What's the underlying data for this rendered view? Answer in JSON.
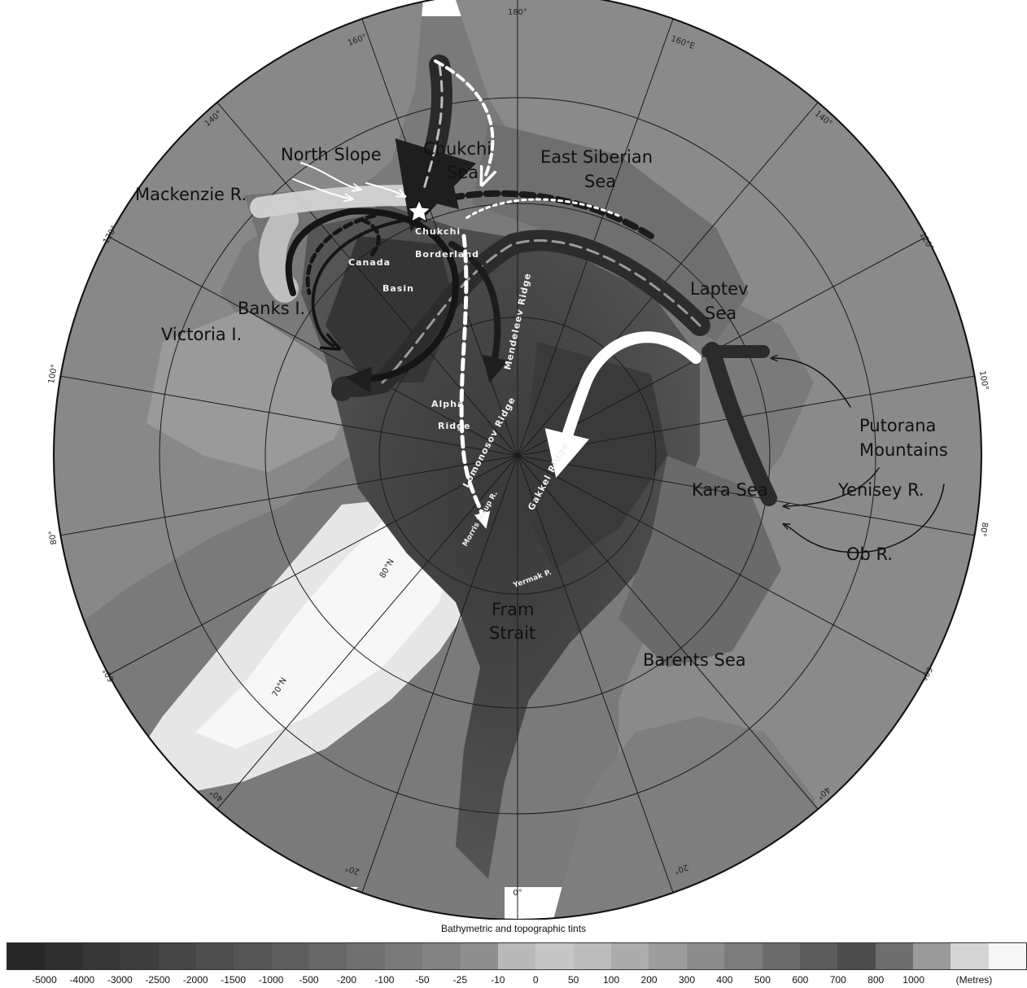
{
  "degree_labels": {
    "top": "180°",
    "top_right": "160°E",
    "top_left": "160°",
    "left_140": "140°",
    "right_140": "140°",
    "left_120": "120°",
    "right_120": "120°",
    "left_100": "100°",
    "right_100": "100°",
    "left_80": "80°",
    "right_80": "80°",
    "left_60": "60°",
    "right_60": "60°",
    "left_40": "40°",
    "right_40": "40°",
    "left_20": "20°",
    "right_20": "20°",
    "bottom": "0°",
    "lat_80": "80°N",
    "lat_70": "70°N"
  },
  "place_labels": {
    "north_slope": "North Slope",
    "chukchi_sea_1": "Chukchi",
    "chukchi_sea_2": "Sea",
    "east_siberian_1": "East Siberian",
    "east_siberian_2": "Sea",
    "mackenzie": "Mackenzie R.",
    "banks": "Banks I.",
    "victoria": "Victoria I.",
    "laptev_1": "Laptev",
    "laptev_2": "Sea",
    "putorana_1": "Putorana",
    "putorana_2": "Mountains",
    "kara": "Kara Sea",
    "yenisey": "Yenisey R.",
    "ob": "Ob R.",
    "fram_1": "Fram",
    "fram_2": "Strait",
    "barents": "Barents Sea",
    "chukchi_borderland_1": "Chukchi",
    "chukchi_borderland_2": "Borderland",
    "canada_basin_1": "Canada",
    "canada_basin_2": "Basin",
    "mendeleev": "Mendeleev Ridge",
    "alpha_1": "Alpha",
    "alpha_2": "Ridge",
    "lomonosov": "Lomonosov Ridge",
    "gakkel": "Gakkel Ridge",
    "morris_jesup": "Morris Jesup R.",
    "yermak": "Yermak P."
  },
  "legend": {
    "title": "Bathymetric and topographic tints",
    "unit": "(Metres)",
    "values": [
      "-5000",
      "-4000",
      "-3000",
      "-2500",
      "-2000",
      "-1500",
      "-1000",
      "-500",
      "-200",
      "-100",
      "-50",
      "-25",
      "-10",
      "0",
      "50",
      "100",
      "200",
      "300",
      "400",
      "500",
      "600",
      "700",
      "800",
      "1000"
    ],
    "colors": [
      "#262626",
      "#2e2e2e",
      "#363636",
      "#3d3d3d",
      "#454545",
      "#4d4d4d",
      "#555555",
      "#5e5e5e",
      "#676767",
      "#707070",
      "#7a7a7a",
      "#838383",
      "#8e8e8e",
      "#b9b9b9",
      "#c6c6c6",
      "#bcbcbc",
      "#acacac",
      "#9c9c9c",
      "#8c8c8c",
      "#7c7c7c",
      "#6c6c6c",
      "#5c5c5c",
      "#4c4c4c",
      "#6e6e6e",
      "#9a9a9a",
      "#d4d4d4",
      "#f6f6f6"
    ]
  }
}
